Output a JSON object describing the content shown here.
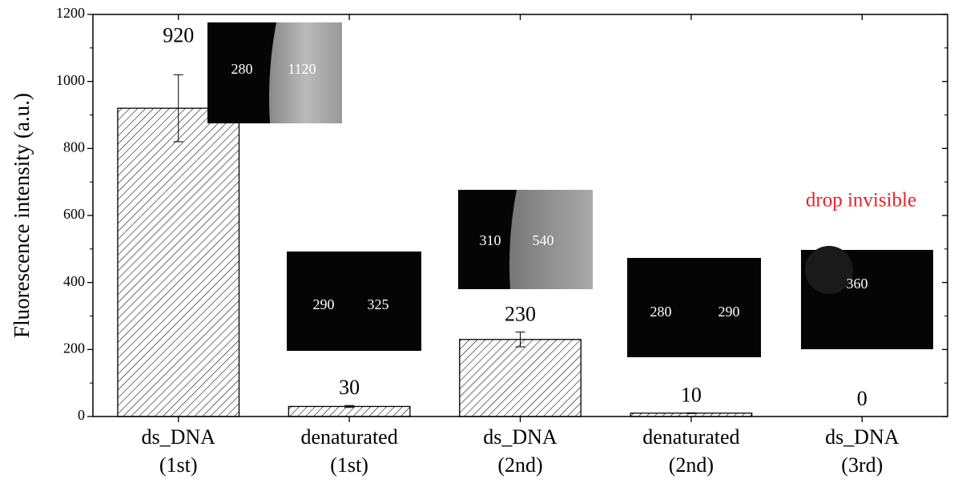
{
  "chart_data": {
    "type": "bar",
    "y_label": "Fluorescence intensity (a.u.)",
    "categories": [
      [
        "ds_DNA",
        "(1st)"
      ],
      [
        "denaturated",
        "(1st)"
      ],
      [
        "ds_DNA",
        "(2nd)"
      ],
      [
        "denaturated",
        "(2nd)"
      ],
      [
        "ds_DNA",
        "(3rd)"
      ]
    ],
    "values": [
      920,
      30,
      230,
      10,
      0
    ],
    "errors": [
      100,
      3,
      22,
      1,
      0
    ],
    "color": "#000000",
    "hatch": "diagonal",
    "ylim": [
      0,
      1200
    ],
    "yticks": [
      0,
      200,
      400,
      600,
      800,
      1000,
      1200
    ],
    "grid": false,
    "annotation": "drop invisible",
    "annotation_color": "#e8202a",
    "insets": [
      {
        "labels": [
          280,
          1120
        ]
      },
      {
        "labels": [
          290,
          325
        ]
      },
      {
        "labels": [
          310,
          540
        ]
      },
      {
        "labels": [
          280,
          290
        ]
      },
      {
        "labels": [
          360
        ]
      }
    ]
  }
}
